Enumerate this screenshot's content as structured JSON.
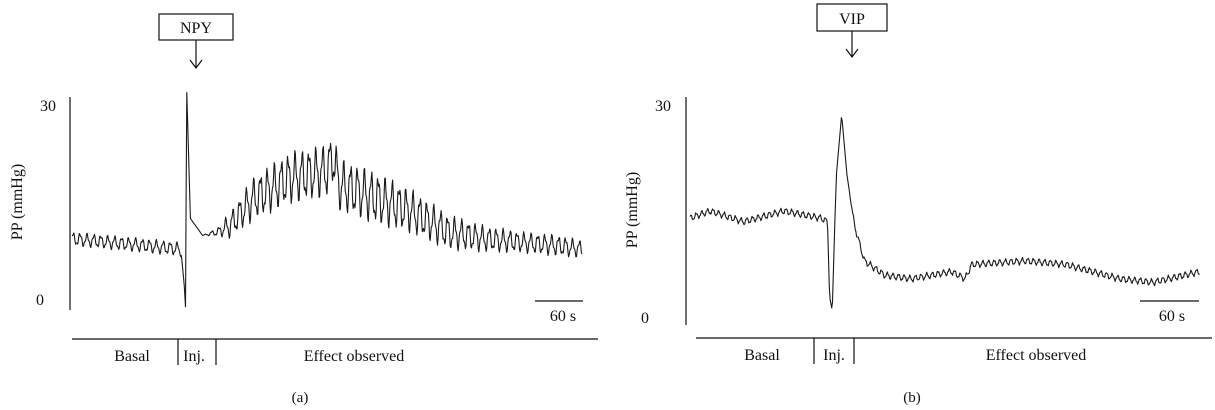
{
  "chart_data": [
    {
      "type": "line",
      "panel_label": "(a)",
      "stimulus": "NPY",
      "ylabel": "PP (mmHg)",
      "yticks": [
        "0",
        "30"
      ],
      "ylim": [
        0,
        30
      ],
      "scale_bar": "60 s",
      "scale_bar_seconds": 60,
      "duration_seconds": 840,
      "phases": [
        "Basal",
        "Inj.",
        "Effect observed"
      ],
      "phase_bounds_seconds": [
        0,
        185,
        250,
        840
      ],
      "series": [
        {
          "x": [
            0,
            60,
            120,
            175,
            180,
            185,
            187,
            189,
            195,
            215,
            240,
            260,
            300,
            360,
            420,
            430,
            440,
            500,
            560,
            620,
            680,
            740,
            800,
            840
          ],
          "y": [
            9,
            8.5,
            8,
            7.5,
            6.8,
            2,
            -1,
            30.5,
            12,
            9.5,
            10,
            11,
            15,
            18,
            19,
            21,
            17,
            15,
            13,
            10,
            9,
            8.5,
            8,
            7.5
          ],
          "oscillation_amplitude": [
            0.8,
            0.8,
            0.8,
            0.8,
            0.3,
            0,
            0,
            0,
            0,
            0,
            0.5,
            1.5,
            2.5,
            3,
            3,
            3,
            3,
            3,
            2.5,
            2,
            1.5,
            1.2,
            1.2,
            1
          ]
        }
      ]
    },
    {
      "type": "line",
      "panel_label": "(b)",
      "stimulus": "VIP",
      "ylabel": "PP (mmHg)",
      "yticks": [
        "0",
        "30"
      ],
      "ylim": [
        0,
        30
      ],
      "scale_bar": "60 s",
      "scale_bar_seconds": 60,
      "duration_seconds": 760,
      "phases": [
        "Basal",
        "Inj.",
        "Effect observed"
      ],
      "phase_bounds_seconds": [
        0,
        180,
        230,
        760
      ],
      "series": [
        {
          "x": [
            0,
            30,
            80,
            140,
            195,
            205,
            208,
            212,
            218,
            226,
            234,
            245,
            260,
            290,
            330,
            390,
            410,
            420,
            500,
            560,
            640,
            690,
            760
          ],
          "y": [
            14,
            15,
            13.5,
            15,
            14,
            13.5,
            3,
            1,
            20,
            28.5,
            20,
            13,
            8,
            6,
            5.5,
            6.5,
            5.5,
            7.5,
            8,
            7.5,
            5.5,
            5,
            6.5
          ],
          "oscillation_amplitude": [
            0.4,
            0.4,
            0.4,
            0.4,
            0.4,
            0.4,
            0,
            0,
            0,
            0,
            0,
            0.4,
            0.4,
            0.4,
            0.4,
            0.4,
            0.4,
            0.4,
            0.4,
            0.4,
            0.4,
            0.4,
            0.4
          ]
        }
      ]
    }
  ]
}
